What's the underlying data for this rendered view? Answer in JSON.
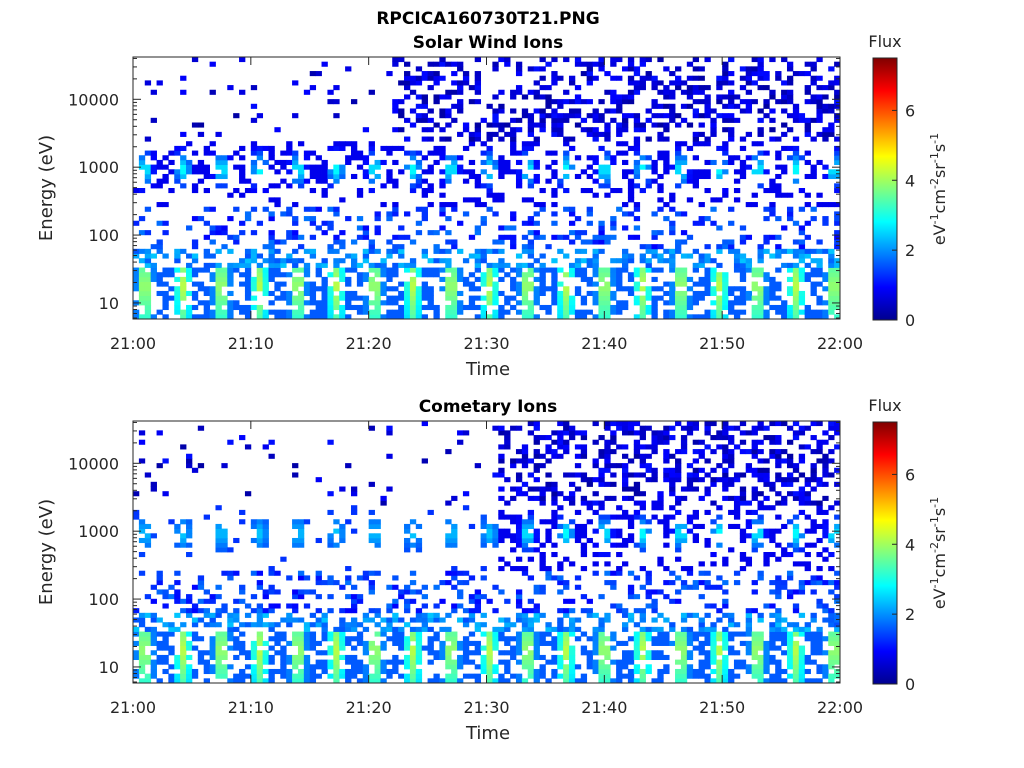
{
  "figure_title": "RPCICA160730T21.PNG",
  "chart_data": [
    {
      "type": "heatmap",
      "title": "Solar Wind Ions",
      "xlabel": "Time",
      "ylabel": "Energy (eV)",
      "x_ticks": [
        "21:00",
        "21:10",
        "21:20",
        "21:30",
        "21:40",
        "21:50",
        "22:00"
      ],
      "y_ticks": [
        "10",
        "100",
        "1000",
        "10000"
      ],
      "y_scale": "log",
      "colorbar": {
        "title": "Flux",
        "units": "eV-1cm-2sr-1s-1",
        "ticks": [
          "0",
          "2",
          "4",
          "6"
        ]
      }
    },
    {
      "type": "heatmap",
      "title": "Cometary Ions",
      "xlabel": "Time",
      "ylabel": "Energy (eV)",
      "x_ticks": [
        "21:00",
        "21:10",
        "21:20",
        "21:30",
        "21:40",
        "21:50",
        "22:00"
      ],
      "y_ticks": [
        "10",
        "100",
        "1000",
        "10000"
      ],
      "y_scale": "log",
      "colorbar": {
        "title": "Flux",
        "units": "eV-1cm-2sr-1s-1",
        "ticks": [
          "0",
          "2",
          "4",
          "6"
        ]
      }
    }
  ]
}
